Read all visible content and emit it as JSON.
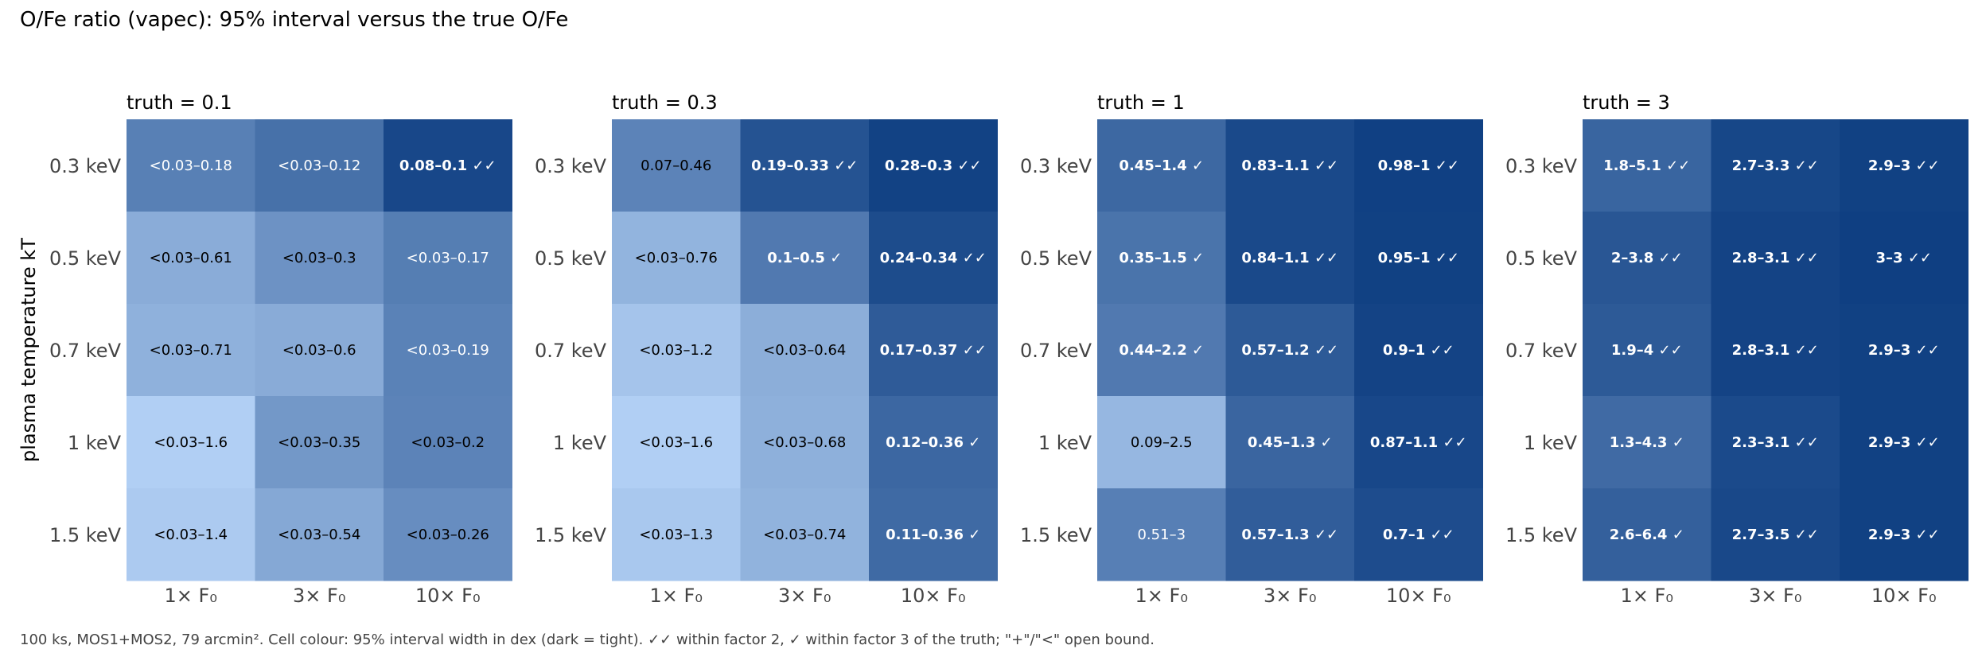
{
  "figure": {
    "title": "O/Fe ratio (vapec): 95% interval versus the true O/Fe",
    "footnote": "100 ks, MOS1+MOS2, 79 arcmin². Cell colour: 95% interval width in dex (dark = tight). ✓✓ within factor 2, ✓ within factor 3 of the truth; \"+\"/\"<\" open bound.",
    "ylabel": "plasma temperature kT"
  },
  "colors": {
    "tightest": "#0f3f82",
    "widest": "#b3d1f5",
    "text_dark": "#000000",
    "text_light": "#ffffff",
    "axis_text": "#444444"
  },
  "chart_data": [
    {
      "type": "heatmap",
      "title": "truth = 0.1",
      "x_categories": [
        "1× F₀",
        "3× F₀",
        "10× F₀"
      ],
      "y_categories": [
        "0.3 keV",
        "0.5 keV",
        "0.7 keV",
        "1 keV",
        "1.5 keV"
      ],
      "cells": [
        [
          {
            "label": "<0.03–0.18",
            "mark": "",
            "width_dex": 0.78
          },
          {
            "label": "<0.03–0.12",
            "mark": "",
            "width_dex": 0.6
          },
          {
            "label": "0.08–0.1",
            "mark": "✓✓",
            "width_dex": 0.1
          }
        ],
        [
          {
            "label": "<0.03–0.61",
            "mark": "",
            "width_dex": 1.31
          },
          {
            "label": "<0.03–0.3",
            "mark": "",
            "width_dex": 1.0
          },
          {
            "label": "<0.03–0.17",
            "mark": "",
            "width_dex": 0.75
          }
        ],
        [
          {
            "label": "<0.03–0.71",
            "mark": "",
            "width_dex": 1.37
          },
          {
            "label": "<0.03–0.6",
            "mark": "",
            "width_dex": 1.3
          },
          {
            "label": "<0.03–0.19",
            "mark": "",
            "width_dex": 0.8
          }
        ],
        [
          {
            "label": "<0.03–1.6",
            "mark": "",
            "width_dex": 1.73
          },
          {
            "label": "<0.03–0.35",
            "mark": "",
            "width_dex": 1.07
          },
          {
            "label": "<0.03–0.2",
            "mark": "",
            "width_dex": 0.82
          }
        ],
        [
          {
            "label": "<0.03–1.4",
            "mark": "",
            "width_dex": 1.67
          },
          {
            "label": "<0.03–0.54",
            "mark": "",
            "width_dex": 1.26
          },
          {
            "label": "<0.03–0.26",
            "mark": "",
            "width_dex": 0.94
          }
        ]
      ]
    },
    {
      "type": "heatmap",
      "title": "truth = 0.3",
      "x_categories": [
        "1× F₀",
        "3× F₀",
        "10× F₀"
      ],
      "y_categories": [
        "0.3 keV",
        "0.5 keV",
        "0.7 keV",
        "1 keV",
        "1.5 keV"
      ],
      "cells": [
        [
          {
            "label": "0.07–0.46",
            "mark": "",
            "width_dex": 0.82
          },
          {
            "label": "0.19–0.33",
            "mark": "✓✓",
            "width_dex": 0.24
          },
          {
            "label": "0.28–0.3",
            "mark": "✓✓",
            "width_dex": 0.03
          }
        ],
        [
          {
            "label": "<0.03–0.76",
            "mark": "",
            "width_dex": 1.4
          },
          {
            "label": "0.1–0.5",
            "mark": "✓",
            "width_dex": 0.7
          },
          {
            "label": "0.24–0.34",
            "mark": "✓✓",
            "width_dex": 0.15
          }
        ],
        [
          {
            "label": "<0.03–1.2",
            "mark": "",
            "width_dex": 1.6
          },
          {
            "label": "<0.03–0.64",
            "mark": "",
            "width_dex": 1.33
          },
          {
            "label": "0.17–0.37",
            "mark": "✓✓",
            "width_dex": 0.34
          }
        ],
        [
          {
            "label": "<0.03–1.6",
            "mark": "",
            "width_dex": 1.73
          },
          {
            "label": "<0.03–0.68",
            "mark": "",
            "width_dex": 1.36
          },
          {
            "label": "0.12–0.36",
            "mark": "✓",
            "width_dex": 0.48
          }
        ],
        [
          {
            "label": "<0.03–1.3",
            "mark": "",
            "width_dex": 1.64
          },
          {
            "label": "<0.03–0.74",
            "mark": "",
            "width_dex": 1.39
          },
          {
            "label": "0.11–0.36",
            "mark": "✓",
            "width_dex": 0.51
          }
        ]
      ]
    },
    {
      "type": "heatmap",
      "title": "truth = 1",
      "x_categories": [
        "1× F₀",
        "3× F₀",
        "10× F₀"
      ],
      "y_categories": [
        "0.3 keV",
        "0.5 keV",
        "0.7 keV",
        "1 keV",
        "1.5 keV"
      ],
      "cells": [
        [
          {
            "label": "0.45–1.4",
            "mark": "✓",
            "width_dex": 0.49
          },
          {
            "label": "0.83–1.1",
            "mark": "✓✓",
            "width_dex": 0.12
          },
          {
            "label": "0.98–1",
            "mark": "✓✓",
            "width_dex": 0.01
          }
        ],
        [
          {
            "label": "0.35–1.5",
            "mark": "✓",
            "width_dex": 0.63
          },
          {
            "label": "0.84–1.1",
            "mark": "✓✓",
            "width_dex": 0.12
          },
          {
            "label": "0.95–1",
            "mark": "✓✓",
            "width_dex": 0.02
          }
        ],
        [
          {
            "label": "0.44–2.2",
            "mark": "✓",
            "width_dex": 0.7
          },
          {
            "label": "0.57–1.2",
            "mark": "✓✓",
            "width_dex": 0.32
          },
          {
            "label": "0.9–1",
            "mark": "✓✓",
            "width_dex": 0.05
          }
        ],
        [
          {
            "label": "0.09–2.5",
            "mark": "",
            "width_dex": 1.44
          },
          {
            "label": "0.45–1.3",
            "mark": "✓",
            "width_dex": 0.46
          },
          {
            "label": "0.87–1.1",
            "mark": "✓✓",
            "width_dex": 0.1
          }
        ],
        [
          {
            "label": "0.51–3",
            "mark": "",
            "width_dex": 0.77
          },
          {
            "label": "0.57–1.3",
            "mark": "✓✓",
            "width_dex": 0.36
          },
          {
            "label": "0.7–1",
            "mark": "✓✓",
            "width_dex": 0.16
          }
        ]
      ]
    },
    {
      "type": "heatmap",
      "title": "truth = 3",
      "x_categories": [
        "1× F₀",
        "3× F₀",
        "10× F₀"
      ],
      "y_categories": [
        "0.3 keV",
        "0.5 keV",
        "0.7 keV",
        "1 keV",
        "1.5 keV"
      ],
      "cells": [
        [
          {
            "label": "1.8–5.1",
            "mark": "✓✓",
            "width_dex": 0.45
          },
          {
            "label": "2.7–3.3",
            "mark": "✓✓",
            "width_dex": 0.09
          },
          {
            "label": "2.9–3",
            "mark": "✓✓",
            "width_dex": 0.02
          }
        ],
        [
          {
            "label": "2–3.8",
            "mark": "✓✓",
            "width_dex": 0.28
          },
          {
            "label": "2.8–3.1",
            "mark": "✓✓",
            "width_dex": 0.05
          },
          {
            "label": "3–3",
            "mark": "✓✓",
            "width_dex": 0.0
          }
        ],
        [
          {
            "label": "1.9–4",
            "mark": "✓✓",
            "width_dex": 0.32
          },
          {
            "label": "2.8–3.1",
            "mark": "✓✓",
            "width_dex": 0.05
          },
          {
            "label": "2.9–3",
            "mark": "✓✓",
            "width_dex": 0.02
          }
        ],
        [
          {
            "label": "1.3–4.3",
            "mark": "✓",
            "width_dex": 0.52
          },
          {
            "label": "2.3–3.1",
            "mark": "✓✓",
            "width_dex": 0.13
          },
          {
            "label": "2.9–3",
            "mark": "✓✓",
            "width_dex": 0.02
          }
        ],
        [
          {
            "label": "2.6–6.4",
            "mark": "✓",
            "width_dex": 0.39
          },
          {
            "label": "2.7–3.5",
            "mark": "✓✓",
            "width_dex": 0.11
          },
          {
            "label": "2.9–3",
            "mark": "✓✓",
            "width_dex": 0.02
          }
        ]
      ]
    }
  ]
}
